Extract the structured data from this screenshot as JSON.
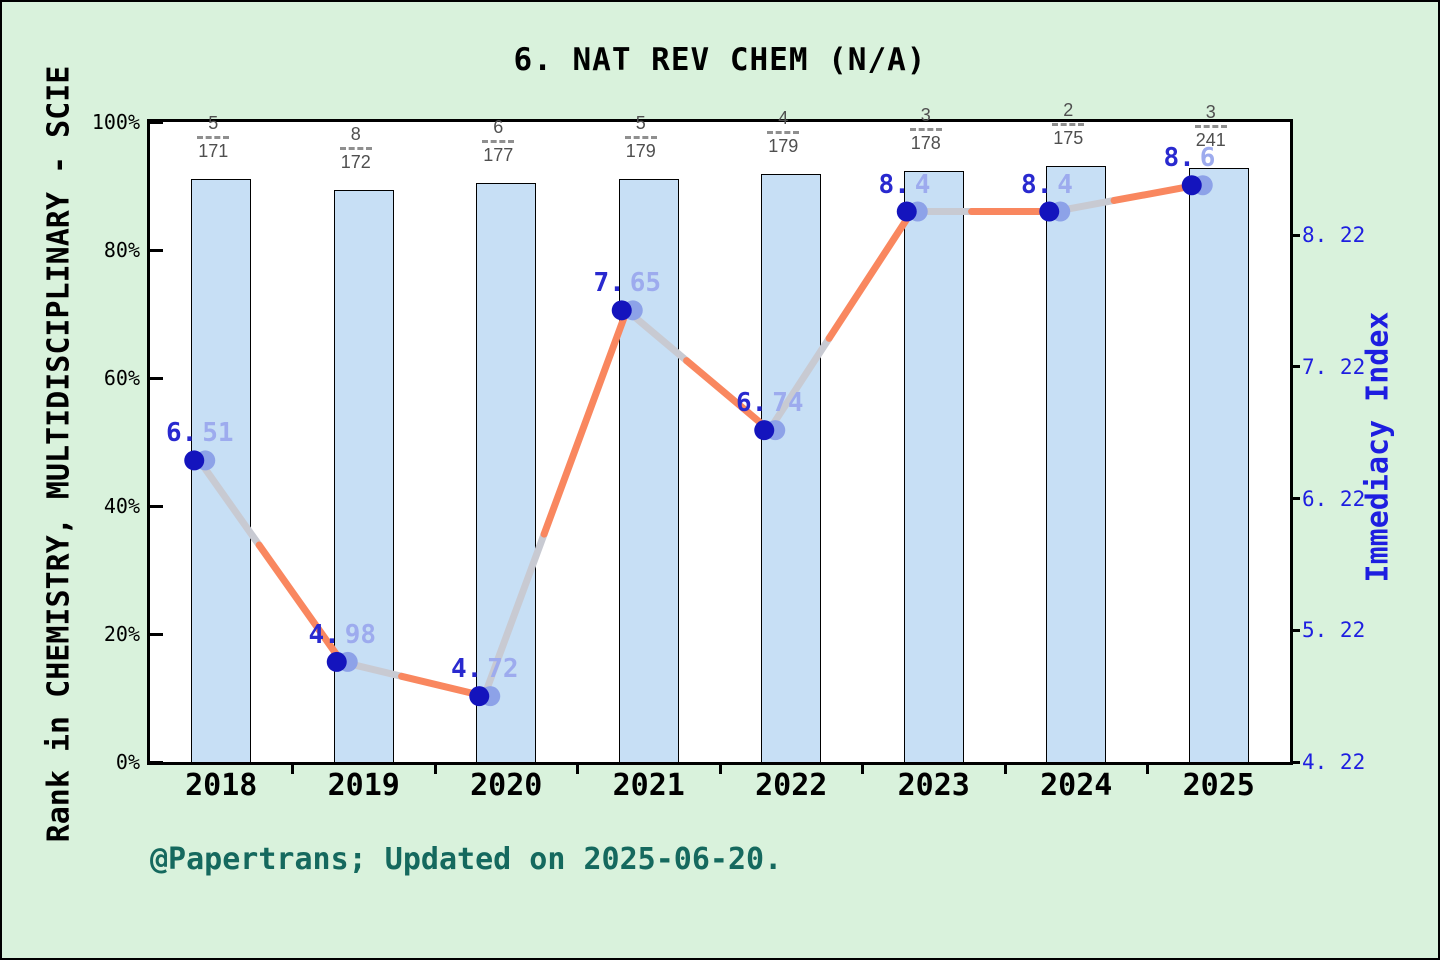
{
  "footer": {
    "text": "@Papertrans; Updated on 2025-06-20."
  },
  "chart_data": {
    "type": "bar+line",
    "title": "6. NAT REV CHEM (N/A)",
    "categories": [
      "2018",
      "2019",
      "2020",
      "2021",
      "2022",
      "2023",
      "2024",
      "2025"
    ],
    "bar_series": {
      "name": "journal-rank-bars",
      "axis": "left",
      "height_pct": [
        91.1,
        89.4,
        90.5,
        91.1,
        91.9,
        92.3,
        93.1,
        92.8
      ],
      "fractions": [
        {
          "numerator": "5",
          "denominator": "171"
        },
        {
          "numerator": "8",
          "denominator": "172"
        },
        {
          "numerator": "6",
          "denominator": "177"
        },
        {
          "numerator": "5",
          "denominator": "179"
        },
        {
          "numerator": "4",
          "denominator": "179"
        },
        {
          "numerator": "3",
          "denominator": "178"
        },
        {
          "numerator": "2",
          "denominator": "175"
        },
        {
          "numerator": "3",
          "denominator": "241"
        }
      ]
    },
    "line_series": {
      "name": "Immediacy Index",
      "axis": "right",
      "values": [
        6.51,
        4.98,
        4.72,
        7.65,
        6.74,
        8.4,
        8.4,
        8.6
      ],
      "point_labels": [
        "6.51",
        "4.98",
        "4.72",
        "7.65",
        "6.74",
        "8.4",
        "8.4",
        "8.6"
      ]
    },
    "left_axis": {
      "label": "Rank in CHEMISTRY, MULTIDISCIPLINARY - SCIE",
      "range_pct": [
        0,
        100
      ],
      "ticks": [
        {
          "pct": 0,
          "label": "0%"
        },
        {
          "pct": 20,
          "label": "20%"
        },
        {
          "pct": 40,
          "label": "40%"
        },
        {
          "pct": 60,
          "label": "60%"
        },
        {
          "pct": 80,
          "label": "80%"
        },
        {
          "pct": 100,
          "label": "100%"
        }
      ]
    },
    "right_axis": {
      "label": "Immediacy Index",
      "min": 4.22,
      "max": 9.08,
      "ticks": [
        {
          "value": 4.22,
          "label": "4. 22"
        },
        {
          "value": 5.22,
          "label": "5. 22"
        },
        {
          "value": 6.22,
          "label": "6. 22"
        },
        {
          "value": 7.22,
          "label": "7. 22"
        },
        {
          "value": 8.22,
          "label": "8. 22"
        }
      ]
    },
    "legend": "none",
    "grid": "off",
    "colors": {
      "background": "#d9f2dc",
      "plot_background": "#ffffff",
      "bar_fill": "#c7dff5",
      "bar_edge": "#000000",
      "line_orange": "#f9875f",
      "line_gray": "#c8cad2",
      "marker_dark": "#1414bd",
      "marker_light": "#8da2e8",
      "point_label_dark": "#2929cf",
      "point_label_light": "#9dabee",
      "right_axis_blue": "#1e1ee0",
      "footer_teal": "#15695e",
      "fraction_gray": "#4f4f4f"
    }
  }
}
